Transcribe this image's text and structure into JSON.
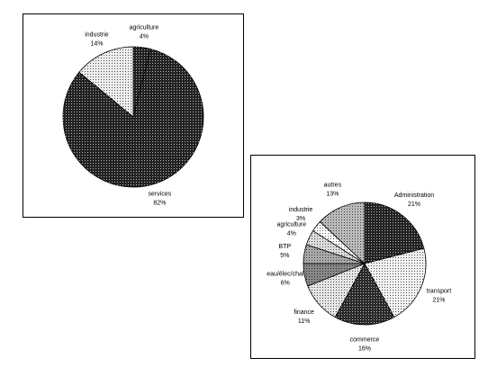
{
  "chart_data": [
    {
      "type": "pie",
      "categories": [
        "agriculture",
        "services",
        "industrie"
      ],
      "values": [
        4,
        82,
        14
      ],
      "value_labels": [
        "4%",
        "82%",
        "14%"
      ],
      "colors": [
        "#222222",
        "#222222",
        "#eeeeee"
      ]
    },
    {
      "type": "pie",
      "categories": [
        "Administration",
        "transport",
        "commerce",
        "finance",
        "eau/élec/chal",
        "BTP",
        "agriculture",
        "industrie",
        "autres"
      ],
      "values": [
        21,
        21,
        16,
        11,
        6,
        5,
        4,
        3,
        13
      ],
      "value_labels": [
        "21%",
        "21%",
        "16%",
        "11%",
        "6%",
        "5%",
        "4%",
        "3%",
        "13%"
      ],
      "colors": [
        "#222222",
        "#f2f2f2",
        "#2a2a2a",
        "#e6e6e6",
        "#888888",
        "#aaaaaa",
        "#dddddd",
        "#ffffff",
        "#bbbbbb"
      ]
    }
  ]
}
